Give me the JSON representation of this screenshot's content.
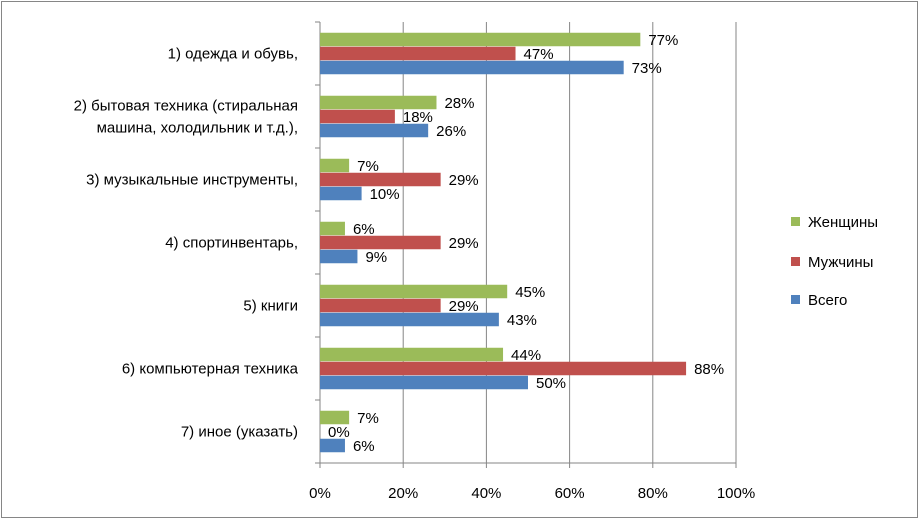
{
  "chart_data": {
    "type": "bar",
    "orientation": "horizontal",
    "categories": [
      [
        "1) одежда и обувь,"
      ],
      [
        "2) бытовая техника (стиральная",
        "машина, холодильник и т.д.),"
      ],
      [
        "3) музыкальные инструменты,"
      ],
      [
        "4) спортинвентарь,"
      ],
      [
        "5) книги"
      ],
      [
        "6) компьютерная техника"
      ],
      [
        "7) иное (указать)"
      ]
    ],
    "series": [
      {
        "name": "Женщины",
        "color": "#9BBB59",
        "values": [
          77,
          28,
          7,
          6,
          45,
          44,
          7
        ]
      },
      {
        "name": "Мужчины",
        "color": "#C0504D",
        "values": [
          47,
          18,
          29,
          29,
          29,
          88,
          0
        ]
      },
      {
        "name": "Всего",
        "color": "#4F81BD",
        "values": [
          73,
          26,
          10,
          9,
          43,
          50,
          6
        ]
      }
    ],
    "value_suffix": "%",
    "xlim": [
      0,
      100
    ],
    "x_ticks": [
      "0%",
      "20%",
      "40%",
      "60%",
      "80%",
      "100%"
    ],
    "grid": "vertical major gridlines",
    "legend": "right"
  }
}
